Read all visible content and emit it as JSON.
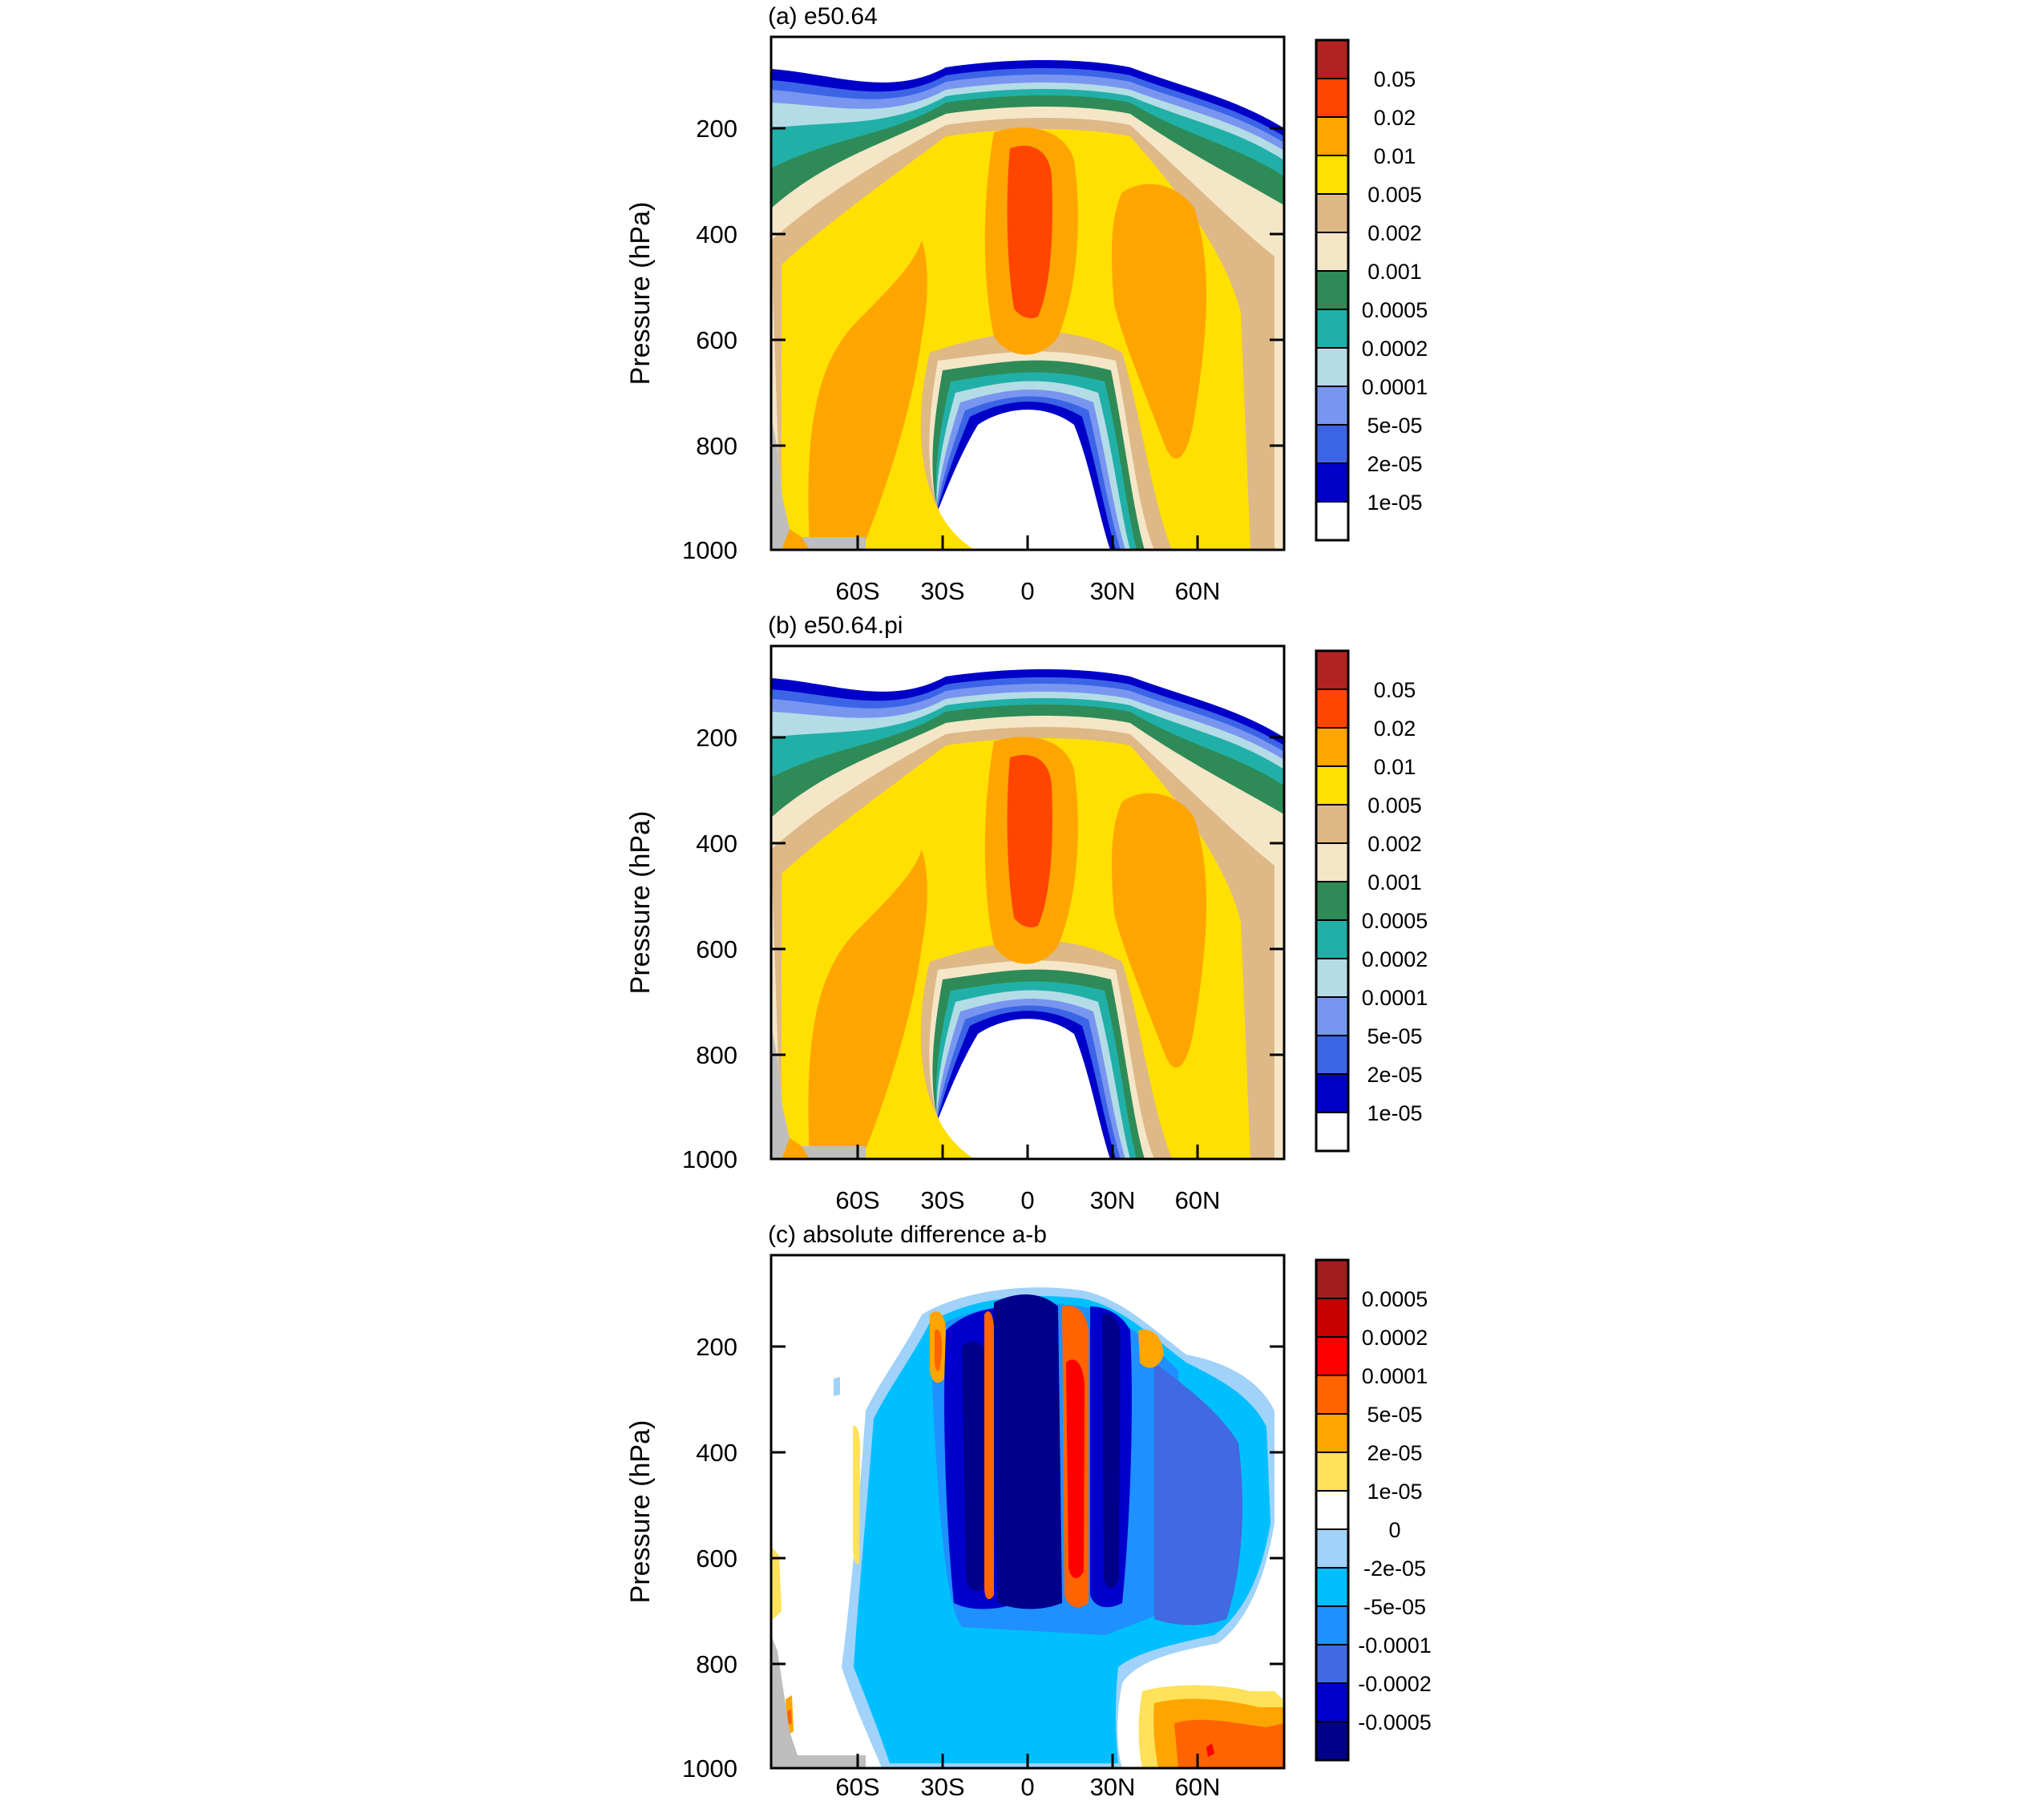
{
  "panels": [
    {
      "title": "(a) e50.64",
      "ylabel": "Pressure (hPa)",
      "yticks": [
        "200",
        "400",
        "600",
        "800",
        "1000"
      ],
      "xticks": [
        "60S",
        "30S",
        "0",
        "30N",
        "60N"
      ],
      "legend": [
        "0.05",
        "0.02",
        "0.01",
        "0.005",
        "0.002",
        "0.001",
        "0.0005",
        "0.0002",
        "0.0001",
        "5e-05",
        "2e-05",
        "1e-05"
      ]
    },
    {
      "title": "(b) e50.64.pi",
      "ylabel": "Pressure (hPa)",
      "yticks": [
        "200",
        "400",
        "600",
        "800",
        "1000"
      ],
      "xticks": [
        "60S",
        "30S",
        "0",
        "30N",
        "60N"
      ],
      "legend": [
        "0.05",
        "0.02",
        "0.01",
        "0.005",
        "0.002",
        "0.001",
        "0.0005",
        "0.0002",
        "0.0001",
        "5e-05",
        "2e-05",
        "1e-05"
      ]
    },
    {
      "title": "(c) absolute difference a-b",
      "ylabel": "Pressure (hPa)",
      "yticks": [
        "200",
        "400",
        "600",
        "800",
        "1000"
      ],
      "xticks": [
        "60S",
        "30S",
        "0",
        "30N",
        "60N"
      ],
      "legend": [
        "0.0005",
        "0.0002",
        "0.0001",
        "5e-05",
        "2e-05",
        "1e-05",
        "0",
        "-2e-05",
        "-5e-05",
        "-0.0001",
        "-0.0002",
        "-0.0005"
      ]
    }
  ],
  "chart_data": [
    {
      "type": "heatmap",
      "title": "(a) e50.64",
      "ylabel": "Pressure (hPa)",
      "x_range": [
        -90,
        90
      ],
      "x_ticks": [
        -60,
        -30,
        0,
        30,
        60
      ],
      "x_tick_labels": [
        "60S",
        "30S",
        "0",
        "30N",
        "60N"
      ],
      "y_range_hPa": [
        1000,
        30
      ],
      "y_ticks": [
        200,
        400,
        600,
        800,
        1000
      ],
      "contour_levels": [
        1e-05,
        2e-05,
        5e-05,
        0.0001,
        0.0002,
        0.0005,
        0.001,
        0.002,
        0.005,
        0.01,
        0.02,
        0.05
      ],
      "colors": [
        "#ffffff",
        "#0000c8",
        "#3c64e6",
        "#7896f0",
        "#b4dce6",
        "#20b0a8",
        "#2e8b57",
        "#f5e6c8",
        "#deb887",
        "#ffe000",
        "#ffa500",
        "#ff4500",
        "#b22222"
      ],
      "missing_color": "#bebebe"
    },
    {
      "type": "heatmap",
      "title": "(b) e50.64.pi",
      "ylabel": "Pressure (hPa)",
      "x_range": [
        -90,
        90
      ],
      "x_ticks": [
        -60,
        -30,
        0,
        30,
        60
      ],
      "x_tick_labels": [
        "60S",
        "30S",
        "0",
        "30N",
        "60N"
      ],
      "y_range_hPa": [
        1000,
        30
      ],
      "y_ticks": [
        200,
        400,
        600,
        800,
        1000
      ],
      "contour_levels": [
        1e-05,
        2e-05,
        5e-05,
        0.0001,
        0.0002,
        0.0005,
        0.001,
        0.002,
        0.005,
        0.01,
        0.02,
        0.05
      ],
      "colors": [
        "#ffffff",
        "#0000c8",
        "#3c64e6",
        "#7896f0",
        "#b4dce6",
        "#20b0a8",
        "#2e8b57",
        "#f5e6c8",
        "#deb887",
        "#ffe000",
        "#ffa500",
        "#ff4500",
        "#b22222"
      ],
      "missing_color": "#bebebe"
    },
    {
      "type": "heatmap",
      "title": "(c) absolute difference a-b",
      "ylabel": "Pressure (hPa)",
      "x_range": [
        -90,
        90
      ],
      "x_ticks": [
        -60,
        -30,
        0,
        30,
        60
      ],
      "x_tick_labels": [
        "60S",
        "30S",
        "0",
        "30N",
        "60N"
      ],
      "y_range_hPa": [
        1000,
        30
      ],
      "y_ticks": [
        200,
        400,
        600,
        800,
        1000
      ],
      "contour_levels": [
        -0.0005,
        -0.0002,
        -0.0001,
        -5e-05,
        -2e-05,
        0,
        1e-05,
        2e-05,
        5e-05,
        0.0001,
        0.0002,
        0.0005
      ],
      "colors": [
        "#00008b",
        "#0000cd",
        "#4169e1",
        "#1e90ff",
        "#00bfff",
        "#a0d2fa",
        "#ffffff",
        "#ffe15a",
        "#ffa500",
        "#ff6400",
        "#ff0000",
        "#c80000",
        "#a01e1e"
      ],
      "missing_color": "#bebebe"
    }
  ]
}
